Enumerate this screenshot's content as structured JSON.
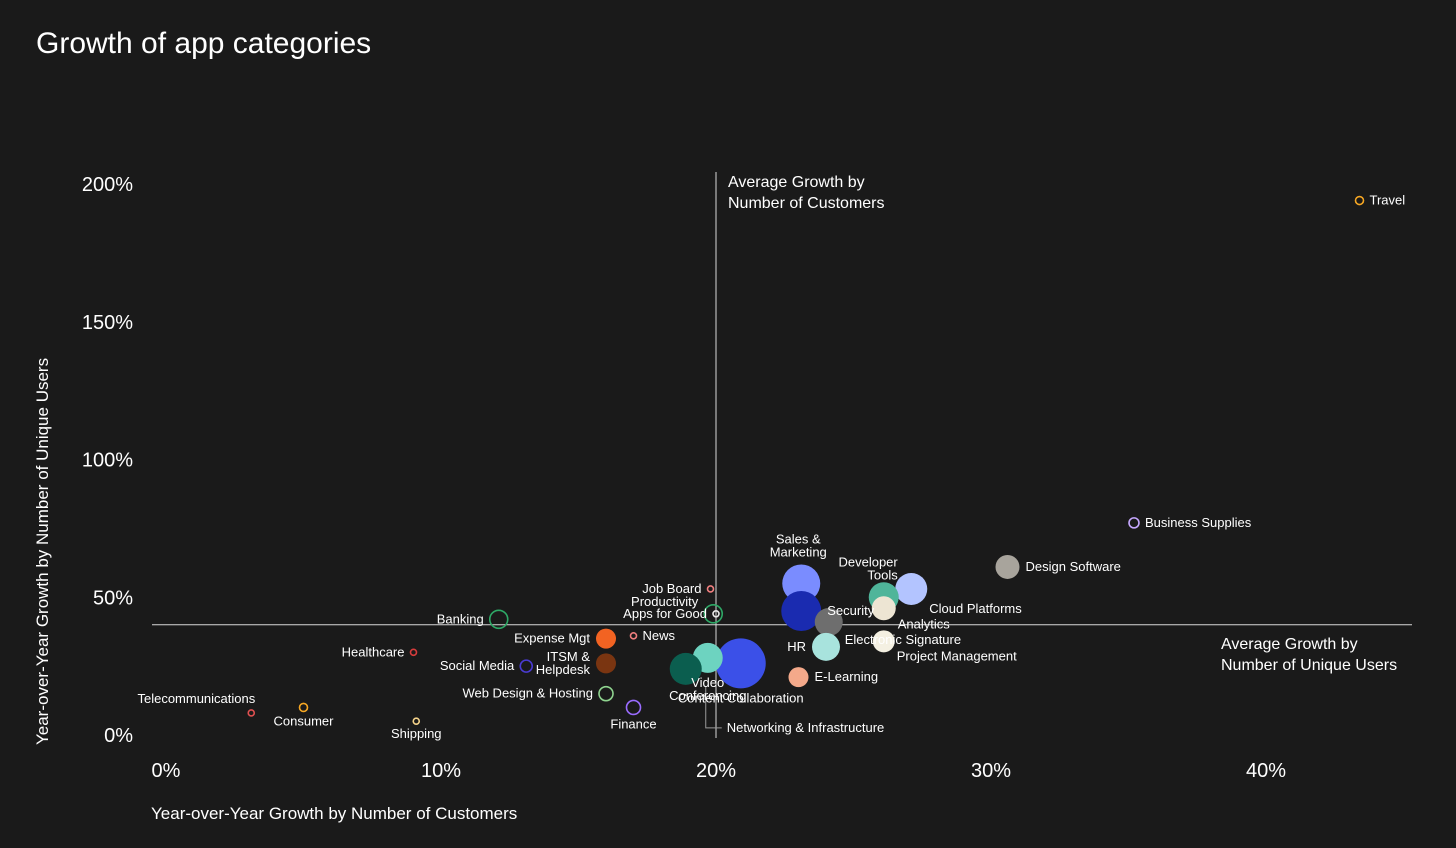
{
  "chart_data": {
    "type": "scatter",
    "title": "Growth of app categories",
    "xlabel": "Year-over-Year Growth by Number of Customers",
    "ylabel": "Year-over-Year Growth by Number of Unique Users",
    "xlim": [
      0,
      45.5
    ],
    "ylim": [
      0,
      200
    ],
    "x_ticks": [
      {
        "value": 0,
        "label": "0%"
      },
      {
        "value": 10,
        "label": "10%"
      },
      {
        "value": 20,
        "label": "20%"
      },
      {
        "value": 30,
        "label": "30%"
      },
      {
        "value": 40,
        "label": "40%"
      }
    ],
    "y_ticks": [
      {
        "value": 0,
        "label": "0%"
      },
      {
        "value": 50,
        "label": "50%"
      },
      {
        "value": 100,
        "label": "100%"
      },
      {
        "value": 150,
        "label": "150%"
      },
      {
        "value": 200,
        "label": "200%"
      }
    ],
    "average_lines": {
      "x": {
        "value": 20,
        "label_lines": [
          "Average Growth by",
          "Number of Customers"
        ]
      },
      "y": {
        "value": 40,
        "label_lines": [
          "Average Growth by",
          "Number of Unique Users"
        ]
      }
    },
    "points": [
      {
        "name": "Travel",
        "label_lines": [
          "Travel"
        ],
        "x": 43.4,
        "y": 194,
        "size": 4,
        "color": "#f5a623",
        "filled": false,
        "label_pos": "right"
      },
      {
        "name": "Business Supplies",
        "label_lines": [
          "Business Supplies"
        ],
        "x": 35.2,
        "y": 77,
        "size": 5,
        "color": "#c6a8ff",
        "filled": false,
        "label_pos": "right"
      },
      {
        "name": "Design Software",
        "label_lines": [
          "Design Software"
        ],
        "x": 30.6,
        "y": 61,
        "size": 12,
        "color": "#a8a49c",
        "filled": true,
        "label_pos": "right"
      },
      {
        "name": "Cloud Platforms",
        "label_lines": [
          "Cloud Platforms"
        ],
        "x": 27.1,
        "y": 53,
        "size": 16,
        "color": "#b3c4ff",
        "filled": true,
        "label_pos": "below-right"
      },
      {
        "name": "Developer Tools",
        "label_lines": [
          "Developer",
          "Tools"
        ],
        "x": 26.1,
        "y": 50,
        "size": 15,
        "color": "#4fb59a",
        "filled": true,
        "label_pos": "upper-left"
      },
      {
        "name": "Analytics",
        "label_lines": [
          "Analytics"
        ],
        "x": 26.1,
        "y": 46,
        "size": 12,
        "color": "#ede5d3",
        "filled": true,
        "label_pos": "below-right"
      },
      {
        "name": "Sales & Marketing",
        "label_lines": [
          "Sales &",
          "Marketing"
        ],
        "x": 23.1,
        "y": 55,
        "size": 19,
        "color": "#7a8cff",
        "filled": true,
        "label_pos": "above"
      },
      {
        "name": "Security",
        "label_lines": [
          "Security"
        ],
        "x": 23.1,
        "y": 45,
        "size": 20,
        "color": "#1a2bb0",
        "filled": true,
        "label_pos": "right"
      },
      {
        "name": "Productivity",
        "label_lines": [
          "Productivity"
        ],
        "x": 19.9,
        "y": 44,
        "size": 9,
        "color": "#2ea866",
        "filled": false,
        "label_pos": "left-up"
      },
      {
        "name": "Electronic Signature",
        "label_lines": [
          "Electronic Signature"
        ],
        "x": 24.1,
        "y": 41,
        "size": 14,
        "color": "#6e6e6e",
        "filled": true,
        "label_pos": "below-right"
      },
      {
        "name": "Project Management",
        "label_lines": [
          "Project Management"
        ],
        "x": 26.1,
        "y": 34,
        "size": 11,
        "color": "#f4f0e2",
        "filled": true,
        "label_pos": "below-right"
      },
      {
        "name": "HR",
        "label_lines": [
          "HR"
        ],
        "x": 24.0,
        "y": 32,
        "size": 14,
        "color": "#a8e3dd",
        "filled": true,
        "label_pos": "left"
      },
      {
        "name": "E-Learning",
        "label_lines": [
          "E-Learning"
        ],
        "x": 23.0,
        "y": 21,
        "size": 10,
        "color": "#f4a98a",
        "filled": true,
        "label_pos": "right"
      },
      {
        "name": "Content Collaboration",
        "label_lines": [
          "Content Collaboration"
        ],
        "x": 20.9,
        "y": 26,
        "size": 25,
        "color": "#3b50e8",
        "filled": true,
        "label_pos": "below"
      },
      {
        "name": "Video Conferencing",
        "label_lines": [
          "Video",
          "Conferencing"
        ],
        "x": 19.7,
        "y": 28,
        "size": 15,
        "color": "#6dd3c0",
        "filled": true,
        "label_pos": "below"
      },
      {
        "name": "Networking & Infrastructure",
        "label_lines": [
          "Networking & Infrastructure"
        ],
        "x": 18.9,
        "y": 24,
        "size": 16,
        "color": "#0b5e4f",
        "filled": true,
        "label_pos": "leader"
      },
      {
        "name": "Job Board",
        "label_lines": [
          "Job Board"
        ],
        "x": 19.8,
        "y": 53,
        "size": 3,
        "color": "#f07f7f",
        "filled": false,
        "label_pos": "left"
      },
      {
        "name": "Apps for Good",
        "label_lines": [
          "Apps for Good"
        ],
        "x": 20.0,
        "y": 44,
        "size": 3,
        "color": "#e8e8e8",
        "filled": false,
        "label_pos": "left"
      },
      {
        "name": "News",
        "label_lines": [
          "News"
        ],
        "x": 17.0,
        "y": 36,
        "size": 3,
        "color": "#f07f7f",
        "filled": false,
        "label_pos": "right"
      },
      {
        "name": "Expense Mgt",
        "label_lines": [
          "Expense Mgt"
        ],
        "x": 16.0,
        "y": 35,
        "size": 10,
        "color": "#f26322",
        "filled": true,
        "label_pos": "left"
      },
      {
        "name": "ITSM & Helpdesk",
        "label_lines": [
          "ITSM &",
          "Helpdesk"
        ],
        "x": 16.0,
        "y": 26,
        "size": 10,
        "color": "#7a3511",
        "filled": true,
        "label_pos": "left"
      },
      {
        "name": "Web Design & Hosting",
        "label_lines": [
          "Web Design & Hosting"
        ],
        "x": 16.0,
        "y": 15,
        "size": 7,
        "color": "#8fd48f",
        "filled": false,
        "label_pos": "left"
      },
      {
        "name": "Finance",
        "label_lines": [
          "Finance"
        ],
        "x": 17.0,
        "y": 10,
        "size": 7,
        "color": "#9a6cff",
        "filled": false,
        "label_pos": "below"
      },
      {
        "name": "Banking",
        "label_lines": [
          "Banking"
        ],
        "x": 12.1,
        "y": 42,
        "size": 9,
        "color": "#2ea866",
        "filled": false,
        "label_pos": "left"
      },
      {
        "name": "Social Media",
        "label_lines": [
          "Social Media"
        ],
        "x": 13.1,
        "y": 25,
        "size": 6,
        "color": "#4a3bd1",
        "filled": false,
        "label_pos": "left"
      },
      {
        "name": "Healthcare",
        "label_lines": [
          "Healthcare"
        ],
        "x": 9.0,
        "y": 30,
        "size": 3,
        "color": "#d63c3c",
        "filled": false,
        "label_pos": "left"
      },
      {
        "name": "Consumer",
        "label_lines": [
          "Consumer"
        ],
        "x": 5.0,
        "y": 10,
        "size": 4,
        "color": "#f5a623",
        "filled": false,
        "label_pos": "below"
      },
      {
        "name": "Telecommunications",
        "label_lines": [
          "Telecommunications"
        ],
        "x": 3.1,
        "y": 8,
        "size": 3,
        "color": "#e05050",
        "filled": false,
        "label_pos": "above-left"
      },
      {
        "name": "Shipping",
        "label_lines": [
          "Shipping"
        ],
        "x": 9.1,
        "y": 5,
        "size": 3,
        "color": "#f5d38a",
        "filled": false,
        "label_pos": "below"
      }
    ]
  }
}
